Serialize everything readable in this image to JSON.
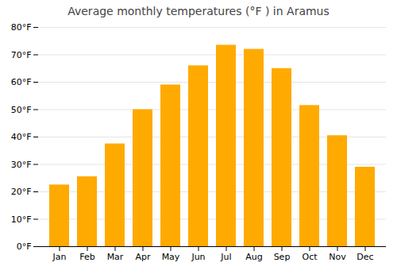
{
  "chart_data": {
    "type": "bar",
    "title": "Average monthly temperatures (°F ) in Aramus",
    "categories": [
      "Jan",
      "Feb",
      "Mar",
      "Apr",
      "May",
      "Jun",
      "Jul",
      "Aug",
      "Sep",
      "Oct",
      "Nov",
      "Dec"
    ],
    "values": [
      22.5,
      25.5,
      37.5,
      50.0,
      59.0,
      66.0,
      73.5,
      72.0,
      65.0,
      51.5,
      40.5,
      29.0
    ],
    "color": "#FFAA00",
    "ylim": [
      0,
      80
    ],
    "yticks": [
      {
        "value": 0,
        "label": "0°F"
      },
      {
        "value": 10,
        "label": "10°F"
      },
      {
        "value": 20,
        "label": "20°F"
      },
      {
        "value": 30,
        "label": "30°F"
      },
      {
        "value": 40,
        "label": "40°F"
      },
      {
        "value": 50,
        "label": "50°F"
      },
      {
        "value": 60,
        "label": "60°F"
      },
      {
        "value": 70,
        "label": "70°F"
      },
      {
        "value": 80,
        "label": "80°F"
      }
    ],
    "grid": true
  }
}
